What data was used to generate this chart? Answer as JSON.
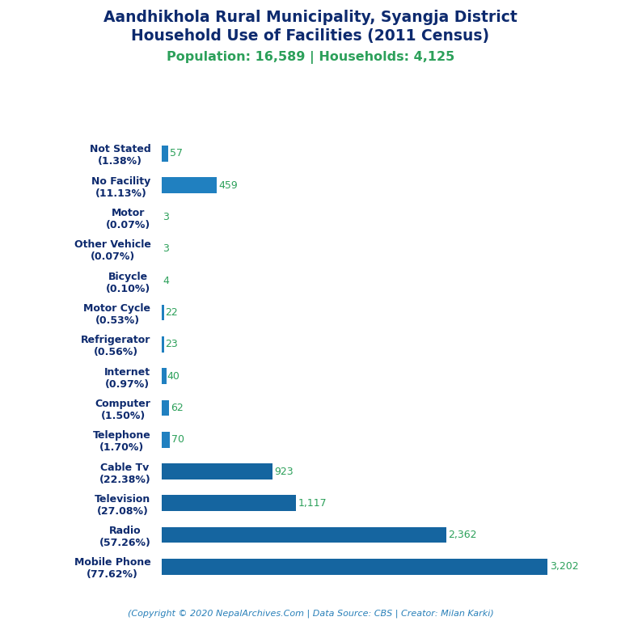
{
  "title_line1": "Aandhikhola Rural Municipality, Syangja District",
  "title_line2": "Household Use of Facilities (2011 Census)",
  "subtitle": "Population: 16,589 | Households: 4,125",
  "footer": "(Copyright © 2020 NepalArchives.Com | Data Source: CBS | Creator: Milan Karki)",
  "categories": [
    "Not Stated\n(1.38%)",
    "No Facility\n(11.13%)",
    "Motor\n(0.07%)",
    "Other Vehicle\n(0.07%)",
    "Bicycle\n(0.10%)",
    "Motor Cycle\n(0.53%)",
    "Refrigerator\n(0.56%)",
    "Internet\n(0.97%)",
    "Computer\n(1.50%)",
    "Telephone\n(1.70%)",
    "Cable Tv\n(22.38%)",
    "Television\n(27.08%)",
    "Radio\n(57.26%)",
    "Mobile Phone\n(77.62%)"
  ],
  "values": [
    57,
    459,
    3,
    3,
    4,
    22,
    23,
    40,
    62,
    70,
    923,
    1117,
    2362,
    3202
  ],
  "value_labels": [
    "57",
    "459",
    "3",
    "3",
    "4",
    "22",
    "23",
    "40",
    "62",
    "70",
    "923",
    "1,117",
    "2,362",
    "3,202"
  ],
  "bar_color": "#2080c0",
  "bar_color_dark": "#1565a0",
  "value_label_color": "#2ca05a",
  "title_color": "#0d2a6e",
  "subtitle_color": "#2ca05a",
  "footer_color": "#2980b9",
  "ylabel_color": "#0d2a6e",
  "background_color": "#ffffff",
  "xlim": [
    0,
    3500
  ],
  "figsize": [
    7.68,
    7.68
  ],
  "dpi": 100
}
